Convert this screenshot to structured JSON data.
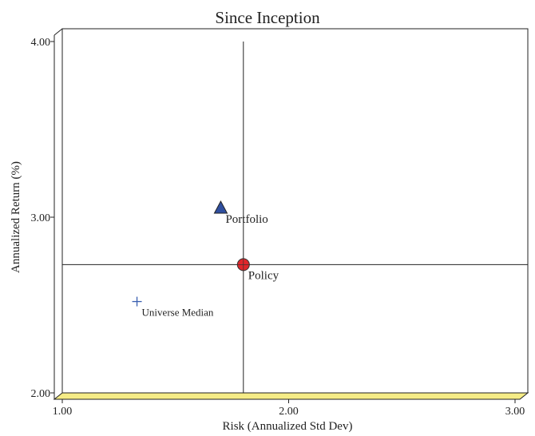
{
  "chart_data": {
    "type": "scatter",
    "title": "Since Inception",
    "xlabel": "Risk (Annualized Std Dev)",
    "ylabel": "Annualized Return (%)",
    "xlim": [
      1.0,
      3.0
    ],
    "ylim": [
      2.0,
      4.0
    ],
    "x_ticks": [
      "1.00",
      "2.00",
      "3.00"
    ],
    "y_ticks": [
      "2.00",
      "3.00",
      "4.00"
    ],
    "reference_lines": {
      "x": 1.8,
      "y": 2.73
    },
    "points": [
      {
        "name": "Portfolio",
        "x": 1.7,
        "y": 3.05,
        "marker": "triangle",
        "color": "#2f4f9f"
      },
      {
        "name": "Policy",
        "x": 1.8,
        "y": 2.73,
        "marker": "circle",
        "color": "#e0262b"
      },
      {
        "name": "Universe Median",
        "x": 1.33,
        "y": 2.52,
        "marker": "plus",
        "color": "#3a5fb0"
      }
    ],
    "floor_color": "#f5ec86",
    "grid": false
  }
}
